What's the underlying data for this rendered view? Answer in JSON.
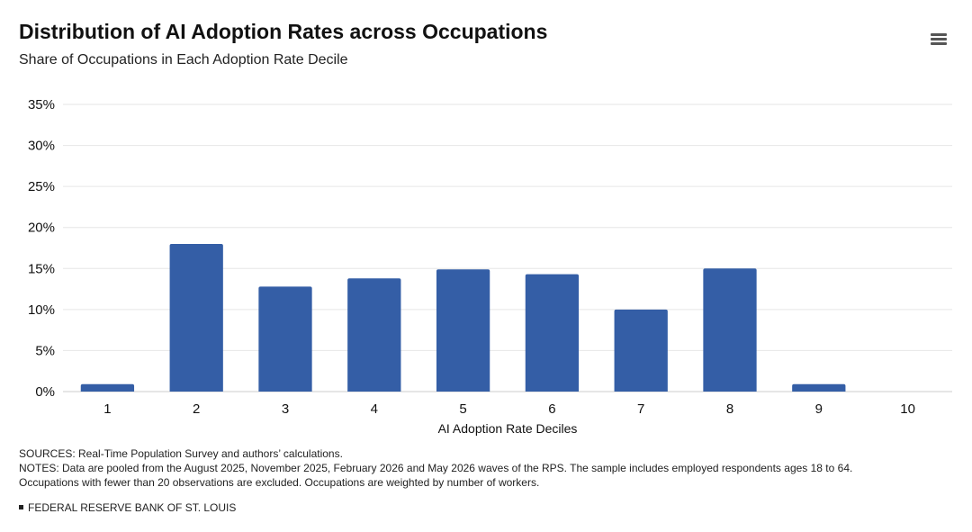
{
  "title": "Distribution of AI Adoption Rates across Occupations",
  "subtitle": "Share of Occupations in Each Adoption Rate Decile",
  "menu_icon": "hamburger-menu-icon",
  "colors": {
    "bar": "#345ea6",
    "grid": "#e6e6e6",
    "axis": "#cccccc",
    "text": "#222222"
  },
  "chart_data": {
    "type": "bar",
    "title": "Distribution of AI Adoption Rates across Occupations",
    "subtitle": "Share of Occupations in Each Adoption Rate Decile",
    "xlabel": "AI Adoption Rate Deciles",
    "ylabel": "",
    "categories": [
      "1",
      "2",
      "3",
      "4",
      "5",
      "6",
      "7",
      "8",
      "9",
      "10"
    ],
    "values": [
      0.9,
      18.0,
      12.8,
      13.8,
      14.9,
      14.3,
      10.0,
      15.0,
      0.9,
      0
    ],
    "ylim": [
      0,
      35
    ],
    "yticks": [
      "0%",
      "5%",
      "10%",
      "15%",
      "20%",
      "25%",
      "30%",
      "35%"
    ],
    "ytick_values": [
      0,
      5,
      10,
      15,
      20,
      25,
      30,
      35
    ],
    "grid": true,
    "legend": "none"
  },
  "footer": {
    "sources": "SOURCES: Real-Time Population Survey and authors’ calculations.",
    "notes_line1": "NOTES: Data are pooled from the August 2025, November 2025, February 2026 and May 2026 waves of the RPS. The sample includes employed respondents ages 18 to 64.",
    "notes_line2": "Occupations with fewer than 20 observations are excluded. Occupations are weighted by number of workers.",
    "credit": "FEDERAL RESERVE BANK OF ST. LOUIS"
  }
}
